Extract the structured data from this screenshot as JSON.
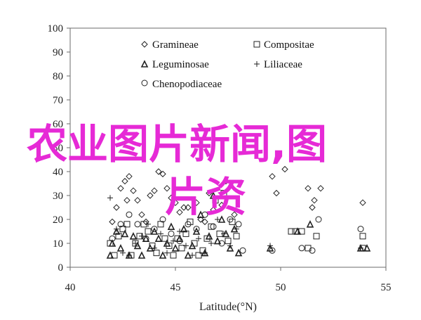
{
  "chart_data": {
    "type": "scatter",
    "xlabel": "Latitude(°N)",
    "ylabel": "",
    "xlim": [
      40,
      55
    ],
    "ylim": [
      0,
      100
    ],
    "xticks": [
      40,
      45,
      50,
      55
    ],
    "yticks": [
      0,
      10,
      20,
      30,
      40,
      50,
      60,
      70,
      80,
      90,
      100
    ],
    "grid": false,
    "legend_position": "top",
    "series": [
      {
        "name": "Gramineae",
        "marker": "diamond",
        "points": [
          [
            42,
            19
          ],
          [
            42.2,
            25
          ],
          [
            42.4,
            33
          ],
          [
            42.6,
            36
          ],
          [
            42.7,
            28
          ],
          [
            42.8,
            38
          ],
          [
            43,
            32
          ],
          [
            43.2,
            28
          ],
          [
            43.4,
            22
          ],
          [
            43.6,
            19
          ],
          [
            43.8,
            30
          ],
          [
            44,
            32
          ],
          [
            44.2,
            40
          ],
          [
            44.4,
            39
          ],
          [
            44.6,
            33
          ],
          [
            44.8,
            29
          ],
          [
            45,
            27
          ],
          [
            45.2,
            23
          ],
          [
            45.4,
            25
          ],
          [
            45.6,
            25
          ],
          [
            46,
            27
          ],
          [
            46.2,
            20
          ],
          [
            46.4,
            19
          ],
          [
            46.6,
            31
          ],
          [
            46.8,
            24
          ],
          [
            47.2,
            26
          ],
          [
            47.4,
            36
          ],
          [
            47.8,
            22
          ],
          [
            49.6,
            38
          ],
          [
            49.8,
            31
          ],
          [
            50.2,
            41
          ],
          [
            51.3,
            33
          ],
          [
            51.5,
            25
          ],
          [
            51.6,
            28
          ],
          [
            51.9,
            33
          ],
          [
            53.9,
            27
          ]
        ]
      },
      {
        "name": "Compositae",
        "marker": "square",
        "points": [
          [
            41.9,
            10
          ],
          [
            42.1,
            5
          ],
          [
            42.3,
            13
          ],
          [
            42.5,
            16
          ],
          [
            42.7,
            18
          ],
          [
            42.9,
            5
          ],
          [
            43.1,
            10
          ],
          [
            43.3,
            13
          ],
          [
            43.5,
            18
          ],
          [
            43.7,
            15
          ],
          [
            43.9,
            9
          ],
          [
            44.1,
            6
          ],
          [
            44.3,
            18
          ],
          [
            44.5,
            12
          ],
          [
            44.7,
            9
          ],
          [
            44.9,
            5
          ],
          [
            45.1,
            12
          ],
          [
            45.3,
            8
          ],
          [
            45.5,
            14
          ],
          [
            45.7,
            19
          ],
          [
            45.9,
            10
          ],
          [
            46.1,
            5
          ],
          [
            46.3,
            7
          ],
          [
            46.5,
            12
          ],
          [
            46.7,
            17
          ],
          [
            46.9,
            28
          ],
          [
            47.1,
            14
          ],
          [
            47.3,
            31
          ],
          [
            47.5,
            11
          ],
          [
            47.7,
            19
          ],
          [
            47.9,
            13
          ],
          [
            50.5,
            15
          ],
          [
            50.7,
            15
          ],
          [
            51,
            15
          ],
          [
            51.3,
            8
          ],
          [
            51.7,
            13
          ],
          [
            53.9,
            13
          ],
          [
            53.9,
            8
          ]
        ]
      },
      {
        "name": "Leguminosae",
        "marker": "triangle",
        "points": [
          [
            41.9,
            5
          ],
          [
            42,
            10
          ],
          [
            42.2,
            15
          ],
          [
            42.4,
            8
          ],
          [
            42.6,
            14
          ],
          [
            42.8,
            5
          ],
          [
            43,
            13
          ],
          [
            43.2,
            9
          ],
          [
            43.4,
            5
          ],
          [
            43.6,
            12
          ],
          [
            43.8,
            8
          ],
          [
            44,
            15
          ],
          [
            44.2,
            12
          ],
          [
            44.4,
            5
          ],
          [
            44.6,
            10
          ],
          [
            44.8,
            17
          ],
          [
            45,
            8
          ],
          [
            45.2,
            12
          ],
          [
            45.4,
            16
          ],
          [
            45.6,
            5
          ],
          [
            45.8,
            9
          ],
          [
            46,
            15
          ],
          [
            46.2,
            22
          ],
          [
            46.4,
            6
          ],
          [
            46.6,
            13
          ],
          [
            46.8,
            30
          ],
          [
            47,
            11
          ],
          [
            47.2,
            20
          ],
          [
            47.4,
            14
          ],
          [
            47.6,
            8
          ],
          [
            47.8,
            16
          ],
          [
            48,
            6
          ],
          [
            49.5,
            8
          ],
          [
            50.8,
            15
          ],
          [
            51.4,
            18
          ],
          [
            53.8,
            8
          ],
          [
            54.1,
            8
          ]
        ]
      },
      {
        "name": "Liliaceae",
        "marker": "plus",
        "points": [
          [
            41.9,
            29
          ],
          [
            42.2,
            16
          ],
          [
            42.5,
            6
          ],
          [
            42.8,
            5
          ],
          [
            43.1,
            10
          ],
          [
            43.4,
            13
          ],
          [
            43.7,
            18
          ],
          [
            44,
            8
          ],
          [
            44.3,
            14
          ],
          [
            44.6,
            6
          ],
          [
            44.9,
            11
          ],
          [
            45.2,
            15
          ],
          [
            45.5,
            9
          ],
          [
            45.8,
            5
          ],
          [
            46.1,
            12
          ],
          [
            46.4,
            6
          ],
          [
            46.7,
            10
          ],
          [
            47,
            20
          ],
          [
            47.3,
            14
          ],
          [
            47.6,
            9
          ],
          [
            47.9,
            16
          ],
          [
            49.5,
            9
          ],
          [
            53.8,
            8
          ]
        ]
      },
      {
        "name": "Chenopodiaceae",
        "marker": "circle",
        "points": [
          [
            42,
            12
          ],
          [
            42.4,
            18
          ],
          [
            42.8,
            22
          ],
          [
            43.2,
            18
          ],
          [
            43.6,
            12
          ],
          [
            44,
            16
          ],
          [
            44.4,
            20
          ],
          [
            44.8,
            14
          ],
          [
            45.2,
            11
          ],
          [
            45.6,
            18
          ],
          [
            46,
            16
          ],
          [
            46.4,
            22
          ],
          [
            46.8,
            17
          ],
          [
            47.2,
            10
          ],
          [
            47.6,
            20
          ],
          [
            48,
            18
          ],
          [
            48.2,
            7
          ],
          [
            49.6,
            7
          ],
          [
            51,
            8
          ],
          [
            51.5,
            7
          ],
          [
            51.8,
            20
          ],
          [
            53.8,
            16
          ]
        ]
      }
    ]
  },
  "legend": [
    {
      "label": "Gramineae",
      "icon": "diamond-marker-icon"
    },
    {
      "label": "Compositae",
      "icon": "square-marker-icon"
    },
    {
      "label": "Leguminosae",
      "icon": "triangle-marker-icon"
    },
    {
      "label": "Liliaceae",
      "icon": "plus-marker-icon"
    },
    {
      "label": "Chenopodiaceae",
      "icon": "circle-marker-icon"
    }
  ],
  "watermark": {
    "line1": "农业图片新闻,图",
    "line2": "片资",
    "color": "#e62ad6"
  }
}
